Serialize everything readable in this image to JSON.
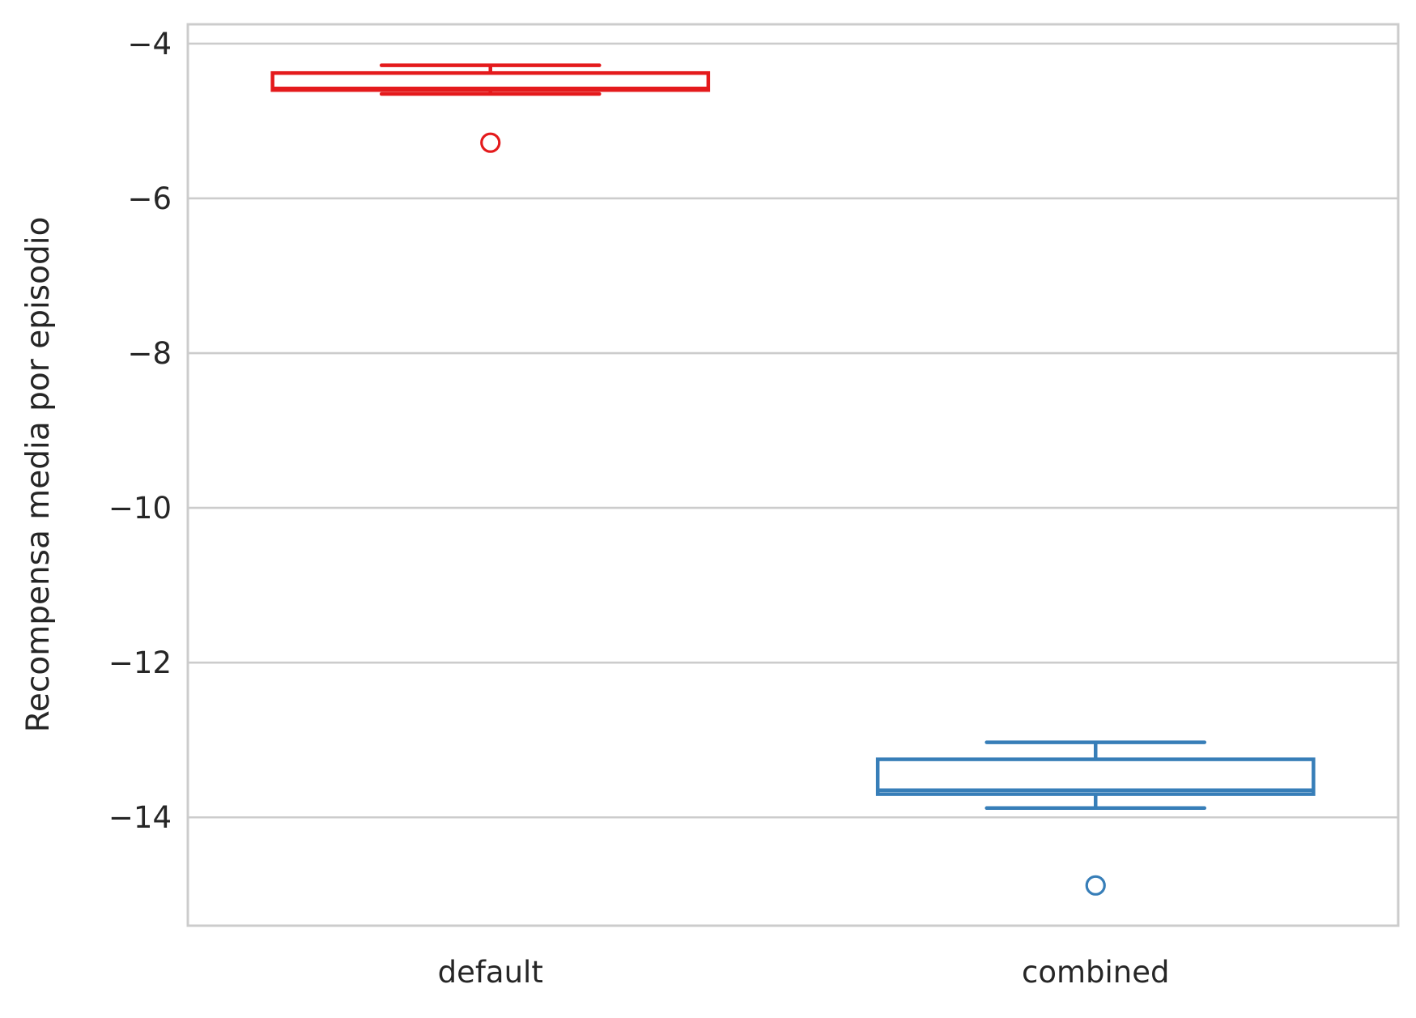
{
  "chart_data": {
    "type": "box",
    "title": "",
    "xlabel": "",
    "ylabel": "Recompensa media por episodio",
    "ylim": [
      -15.4,
      -3.75
    ],
    "yticks": [
      -4,
      -6,
      -8,
      -10,
      -12,
      -14
    ],
    "ytick_labels": [
      "−4",
      "−6",
      "−8",
      "−10",
      "−12",
      "−14"
    ],
    "grid": "horizontal",
    "categories": [
      "default",
      "combined"
    ],
    "boxes": [
      {
        "category": "default",
        "color": "#e41a1c",
        "whisker_low": -4.65,
        "q1": -4.6,
        "median": -4.58,
        "q3": -4.38,
        "whisker_high": -4.28,
        "outliers": [
          -5.28
        ]
      },
      {
        "category": "combined",
        "color": "#377eb8",
        "whisker_low": -13.88,
        "q1": -13.7,
        "median": -13.65,
        "q3": -13.25,
        "whisker_high": -13.03,
        "outliers": [
          -14.88
        ]
      }
    ]
  }
}
